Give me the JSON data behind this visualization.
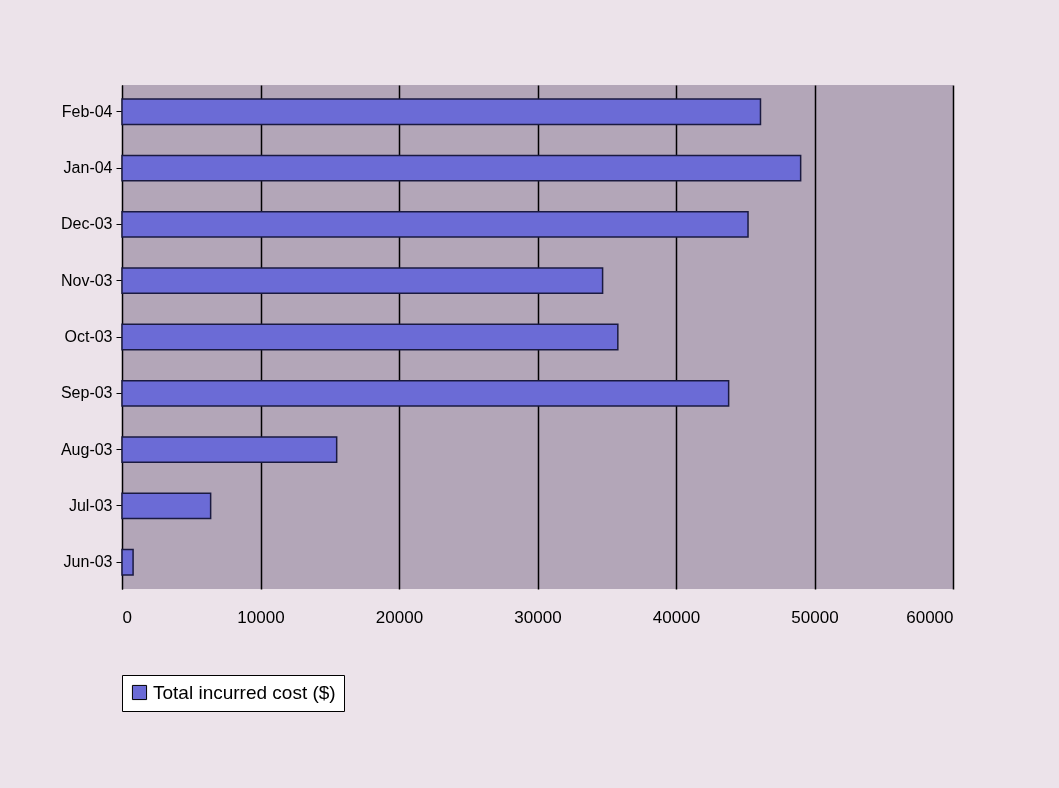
{
  "chart_data": {
    "type": "bar",
    "orientation": "horizontal",
    "categories": [
      "Feb-04",
      "Jan-04",
      "Dec-03",
      "Nov-03",
      "Oct-03",
      "Sep-03",
      "Aug-03",
      "Jul-03",
      "Jun-03"
    ],
    "series": [
      {
        "name": "Total incurred cost ($)",
        "color": "#6b6bd6",
        "values": [
          46100,
          49000,
          45200,
          34700,
          35800,
          43800,
          15500,
          6400,
          800
        ]
      }
    ],
    "xlim": [
      0,
      60000
    ],
    "xticks": [
      0,
      10000,
      20000,
      30000,
      40000,
      50000,
      60000
    ],
    "grid": "x",
    "legend": "bottom"
  }
}
